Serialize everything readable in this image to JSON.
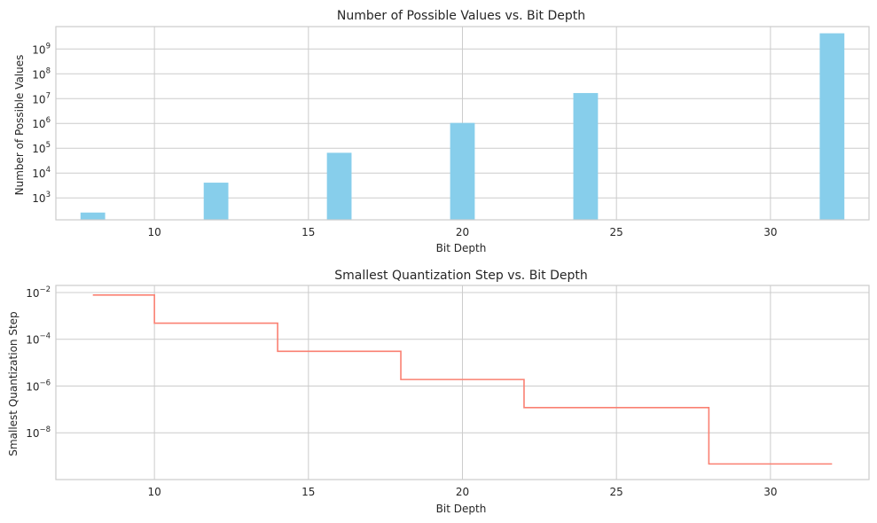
{
  "chart_data": [
    {
      "type": "bar",
      "title": "Number of Possible Values vs. Bit Depth",
      "xlabel": "Bit Depth",
      "ylabel": "Number of Possible Values",
      "yscale": "log",
      "xlim": [
        6.8,
        33.2
      ],
      "ylim": [
        130,
        8000000000
      ],
      "xticks": [
        10,
        15,
        20,
        25,
        30
      ],
      "yticks": [
        1000,
        10000,
        100000,
        1000000,
        10000000,
        100000000,
        1000000000
      ],
      "grid": true,
      "color": "#87ceeb",
      "series": [
        {
          "x": [
            8,
            12,
            16,
            20,
            24,
            32
          ],
          "values": [
            256,
            4096,
            65536,
            1048576,
            16777216,
            4294967296
          ]
        }
      ]
    },
    {
      "type": "line",
      "drawstyle": "steps-post",
      "title": "Smallest Quantization Step vs. Bit Depth",
      "xlabel": "Bit Depth",
      "ylabel": "Smallest Quantization Step",
      "yscale": "log",
      "xlim": [
        6.8,
        33.2
      ],
      "ylim": [
        1e-10,
        0.02
      ],
      "xticks": [
        10,
        15,
        20,
        25,
        30
      ],
      "yticks": [
        1e-08,
        1e-06,
        0.0001,
        0.01
      ],
      "grid": true,
      "color": "#fa8072",
      "series": [
        {
          "x": [
            8,
            10,
            14,
            18,
            22,
            28,
            32
          ],
          "y": [
            0.0078,
            0.000488,
            3.05e-05,
            1.9e-06,
            1.19e-07,
            4.66e-10,
            4.66e-10
          ]
        }
      ]
    }
  ]
}
